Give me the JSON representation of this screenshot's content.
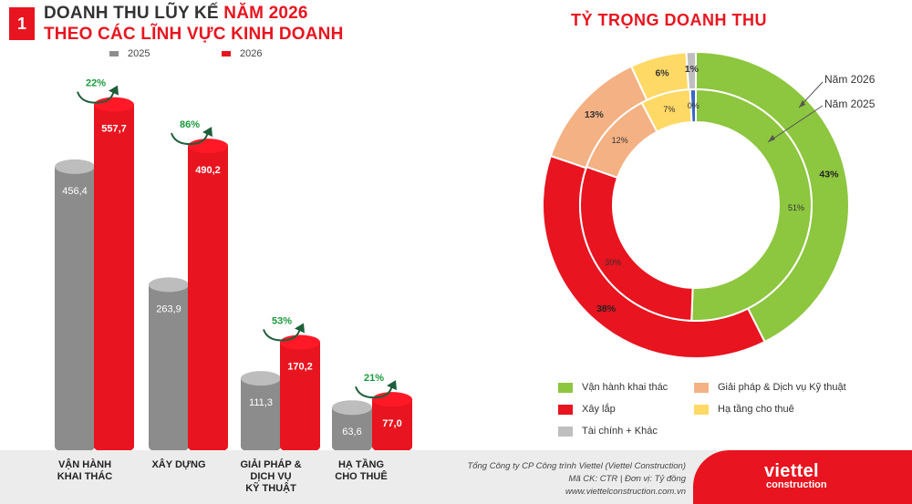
{
  "header": {
    "number": "1",
    "title_line1_dark": "DOANH THU LŨY KẾ ",
    "title_line1_red": "NĂM 2026",
    "title_line2": "THEO CÁC LĨNH VỰC KINH DOANH"
  },
  "colors": {
    "series_2025": "#8c8c8c",
    "series_2026": "#e8141f",
    "growth": "#1a9a3c",
    "donut": [
      "#8dc63f",
      "#e8141f",
      "#f4b183",
      "#ffd966",
      "#bfbfbf"
    ],
    "donut_inner_extra": "#3a66c4"
  },
  "donut_title": "TỶ TRỌNG DOANH THU",
  "chart_data": [
    {
      "type": "bar",
      "categories": [
        "VẬN HÀNH\nKHAI THÁC",
        "XÂY DỰNG",
        "GIẢI PHÁP &\nDỊCH VỤ\nKỸ THUẬT",
        "HẠ TẦNG\nCHO THUÊ"
      ],
      "series": [
        {
          "name": "2025",
          "values": [
            456.4,
            263.9,
            111.3,
            63.6
          ],
          "labels": [
            "456,4",
            "263,9",
            "111,3",
            "63,6"
          ]
        },
        {
          "name": "2026",
          "values": [
            557.7,
            490.2,
            170.2,
            77.0
          ],
          "labels": [
            "557,7",
            "490,2",
            "170,2",
            "77,0"
          ]
        }
      ],
      "growth": [
        "22%",
        "86%",
        "53%",
        "21%"
      ],
      "ylim": [
        0,
        600
      ]
    },
    {
      "type": "pie",
      "title": "TỶ TRỌNG DOANH THU",
      "categories": [
        "Vận hành khai thác",
        "Xây lắp",
        "Giải pháp & Dịch vụ Kỹ thuật",
        "Hạ tầng cho thuê",
        "Tài chính + Khác"
      ],
      "series": [
        {
          "name": "Năm 2026",
          "values": [
            43,
            38,
            13,
            6,
            1
          ],
          "labels": [
            "43%",
            "38%",
            "13%",
            "6%",
            "1%"
          ]
        },
        {
          "name": "Năm 2025",
          "values": [
            51,
            30,
            12,
            7,
            0
          ],
          "labels": [
            "51%",
            "30%",
            "12%",
            "7%",
            "0%"
          ]
        }
      ]
    }
  ],
  "donut_legend": [
    {
      "label": "Vận hành khai thác",
      "color": "#8dc63f"
    },
    {
      "label": "Giải pháp & Dịch vụ Kỹ thuật",
      "color": "#f4b183"
    },
    {
      "label": "Xây lắp",
      "color": "#e8141f"
    },
    {
      "label": "Hạ tầng cho thuê",
      "color": "#ffd966"
    },
    {
      "label": "Tài chính + Khác",
      "color": "#bfbfbf"
    }
  ],
  "footer": {
    "company": "Tổng Công ty CP Công trình Viettel (Viettel Construction)",
    "code": "Mã CK: CTR  |  Đơn vị: Tỷ đồng",
    "website": "www.viettelconstruction.com.vn",
    "logo_line1": "viettel",
    "logo_line2": "construction"
  }
}
